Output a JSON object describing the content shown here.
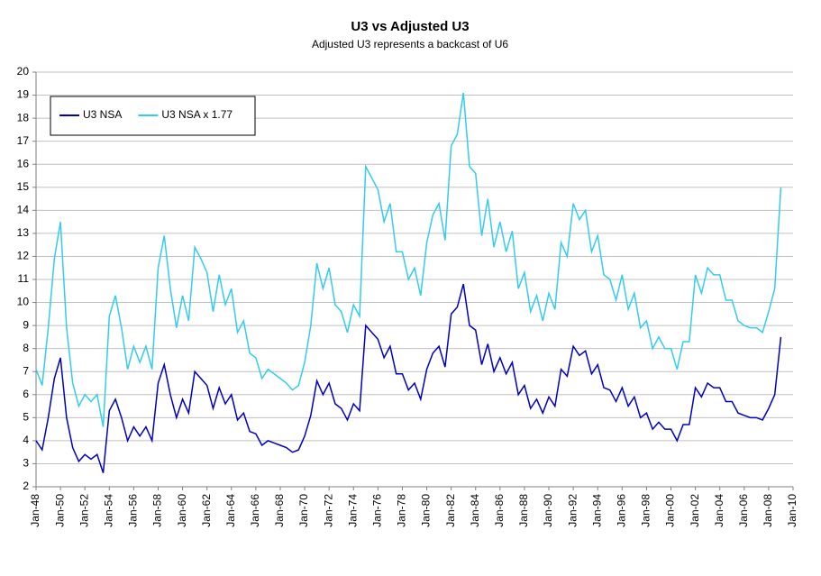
{
  "chart_data": {
    "type": "line",
    "title": "U3 vs Adjusted U3",
    "subtitle": "Adjusted U3 represents a backcast of U6",
    "x": [
      "1948-01",
      "1948-07",
      "1949-01",
      "1949-07",
      "1950-01",
      "1950-07",
      "1951-01",
      "1951-07",
      "1952-01",
      "1952-07",
      "1953-01",
      "1953-07",
      "1954-01",
      "1954-07",
      "1955-01",
      "1955-07",
      "1956-01",
      "1956-07",
      "1957-01",
      "1957-07",
      "1958-01",
      "1958-07",
      "1959-01",
      "1959-07",
      "1960-01",
      "1960-07",
      "1961-01",
      "1961-07",
      "1962-01",
      "1962-07",
      "1963-01",
      "1963-07",
      "1964-01",
      "1964-07",
      "1965-01",
      "1965-07",
      "1966-01",
      "1966-07",
      "1967-01",
      "1967-07",
      "1968-01",
      "1968-07",
      "1969-01",
      "1969-07",
      "1970-01",
      "1970-07",
      "1971-01",
      "1971-07",
      "1972-01",
      "1972-07",
      "1973-01",
      "1973-07",
      "1974-01",
      "1974-07",
      "1975-01",
      "1975-07",
      "1976-01",
      "1976-07",
      "1977-01",
      "1977-07",
      "1978-01",
      "1978-07",
      "1979-01",
      "1979-07",
      "1980-01",
      "1980-07",
      "1981-01",
      "1981-07",
      "1982-01",
      "1982-07",
      "1983-01",
      "1983-07",
      "1984-01",
      "1984-07",
      "1985-01",
      "1985-07",
      "1986-01",
      "1986-07",
      "1987-01",
      "1987-07",
      "1988-01",
      "1988-07",
      "1989-01",
      "1989-07",
      "1990-01",
      "1990-07",
      "1991-01",
      "1991-07",
      "1992-01",
      "1992-07",
      "1993-01",
      "1993-07",
      "1994-01",
      "1994-07",
      "1995-01",
      "1995-07",
      "1996-01",
      "1996-07",
      "1997-01",
      "1997-07",
      "1998-01",
      "1998-07",
      "1999-01",
      "1999-07",
      "2000-01",
      "2000-07",
      "2001-01",
      "2001-07",
      "2002-01",
      "2002-07",
      "2003-01",
      "2003-07",
      "2004-01",
      "2004-07",
      "2005-01",
      "2005-07",
      "2006-01",
      "2006-07",
      "2007-01",
      "2007-07",
      "2008-01",
      "2008-07",
      "2009-01"
    ],
    "series": [
      {
        "name": "U3 NSA",
        "color": "#0000c0",
        "values": [
          4.0,
          3.6,
          5.0,
          6.7,
          7.6,
          5.0,
          3.7,
          3.1,
          3.4,
          3.2,
          3.4,
          2.6,
          5.3,
          5.8,
          5.0,
          4.0,
          4.6,
          4.2,
          4.6,
          4.0,
          6.5,
          7.3,
          6.0,
          5.0,
          5.8,
          5.2,
          7.0,
          6.7,
          6.4,
          5.4,
          6.3,
          5.6,
          6.0,
          4.9,
          5.2,
          4.4,
          4.3,
          3.8,
          4.0,
          3.9,
          3.8,
          3.7,
          3.5,
          3.6,
          4.2,
          5.1,
          6.6,
          6.0,
          6.5,
          5.6,
          5.4,
          4.9,
          5.6,
          5.3,
          9.0,
          8.7,
          8.4,
          7.6,
          8.1,
          6.9,
          6.9,
          6.2,
          6.5,
          5.8,
          7.1,
          7.8,
          8.1,
          7.2,
          9.5,
          9.8,
          10.8,
          9.0,
          8.8,
          7.3,
          8.2,
          7.0,
          7.6,
          6.9,
          7.4,
          6.0,
          6.4,
          5.4,
          5.8,
          5.2,
          5.9,
          5.5,
          7.1,
          6.8,
          8.1,
          7.7,
          7.9,
          6.9,
          7.3,
          6.3,
          6.2,
          5.7,
          6.3,
          5.5,
          5.9,
          5.0,
          5.2,
          4.5,
          4.8,
          4.5,
          4.5,
          4.0,
          4.7,
          4.7,
          6.3,
          5.9,
          6.5,
          6.3,
          6.3,
          5.7,
          5.7,
          5.2,
          5.1,
          5.0,
          5.0,
          4.9,
          5.4,
          6.0,
          8.5
        ]
      },
      {
        "name": "U3 NSA x 1.77",
        "color": "#33ccee",
        "values": [
          7.1,
          6.4,
          8.9,
          11.9,
          13.5,
          8.9,
          6.5,
          5.5,
          6.0,
          5.7,
          6.0,
          4.6,
          9.4,
          10.3,
          8.9,
          7.1,
          8.1,
          7.4,
          8.1,
          7.1,
          11.5,
          12.9,
          10.6,
          8.9,
          10.3,
          9.2,
          12.4,
          11.9,
          11.3,
          9.6,
          11.2,
          9.9,
          10.6,
          8.7,
          9.2,
          7.8,
          7.6,
          6.7,
          7.1,
          6.9,
          6.7,
          6.5,
          6.2,
          6.4,
          7.4,
          9.0,
          11.7,
          10.6,
          11.5,
          9.9,
          9.6,
          8.7,
          9.9,
          9.4,
          15.9,
          15.4,
          14.9,
          13.5,
          14.3,
          12.2,
          12.2,
          11.0,
          11.5,
          10.3,
          12.6,
          13.8,
          14.3,
          12.7,
          16.8,
          17.3,
          19.1,
          15.9,
          15.6,
          12.9,
          14.5,
          12.4,
          13.5,
          12.2,
          13.1,
          10.6,
          11.3,
          9.6,
          10.3,
          9.2,
          10.4,
          9.7,
          12.6,
          12.0,
          14.3,
          13.6,
          14.0,
          12.2,
          12.9,
          11.2,
          11.0,
          10.1,
          11.2,
          9.7,
          10.4,
          8.9,
          9.2,
          8.0,
          8.5,
          8.0,
          8.0,
          7.1,
          8.3,
          8.3,
          11.2,
          10.4,
          11.5,
          11.2,
          11.2,
          10.1,
          10.1,
          9.2,
          9.0,
          8.9,
          8.9,
          8.7,
          9.6,
          10.6,
          15.0
        ]
      }
    ],
    "xlim": [
      "1948-01",
      "2010-01"
    ],
    "xticks": [
      {
        "value": "1948-01",
        "label": "Jan-48"
      },
      {
        "value": "1950-01",
        "label": "Jan-50"
      },
      {
        "value": "1952-01",
        "label": "Jan-52"
      },
      {
        "value": "1954-01",
        "label": "Jan-54"
      },
      {
        "value": "1956-01",
        "label": "Jan-56"
      },
      {
        "value": "1958-01",
        "label": "Jan-58"
      },
      {
        "value": "1960-01",
        "label": "Jan-60"
      },
      {
        "value": "1962-01",
        "label": "Jan-62"
      },
      {
        "value": "1964-01",
        "label": "Jan-64"
      },
      {
        "value": "1966-01",
        "label": "Jan-66"
      },
      {
        "value": "1968-01",
        "label": "Jan-68"
      },
      {
        "value": "1970-01",
        "label": "Jan-70"
      },
      {
        "value": "1972-01",
        "label": "Jan-72"
      },
      {
        "value": "1974-01",
        "label": "Jan-74"
      },
      {
        "value": "1976-01",
        "label": "Jan-76"
      },
      {
        "value": "1978-01",
        "label": "Jan-78"
      },
      {
        "value": "1980-01",
        "label": "Jan-80"
      },
      {
        "value": "1982-01",
        "label": "Jan-82"
      },
      {
        "value": "1984-01",
        "label": "Jan-84"
      },
      {
        "value": "1986-01",
        "label": "Jan-86"
      },
      {
        "value": "1988-01",
        "label": "Jan-88"
      },
      {
        "value": "1990-01",
        "label": "Jan-90"
      },
      {
        "value": "1992-01",
        "label": "Jan-92"
      },
      {
        "value": "1994-01",
        "label": "Jan-94"
      },
      {
        "value": "1996-01",
        "label": "Jan-96"
      },
      {
        "value": "1998-01",
        "label": "Jan-98"
      },
      {
        "value": "2000-01",
        "label": "Jan-00"
      },
      {
        "value": "2002-01",
        "label": "Jan-02"
      },
      {
        "value": "2004-01",
        "label": "Jan-04"
      },
      {
        "value": "2006-01",
        "label": "Jan-06"
      },
      {
        "value": "2008-01",
        "label": "Jan-08"
      },
      {
        "value": "2010-01",
        "label": "Jan-10"
      }
    ],
    "ylim": [
      2,
      20
    ],
    "yticks": [
      2,
      3,
      4,
      5,
      6,
      7,
      8,
      9,
      10,
      11,
      12,
      13,
      14,
      15,
      16,
      17,
      18,
      19,
      20
    ],
    "grid": true,
    "legend": "upper left"
  }
}
